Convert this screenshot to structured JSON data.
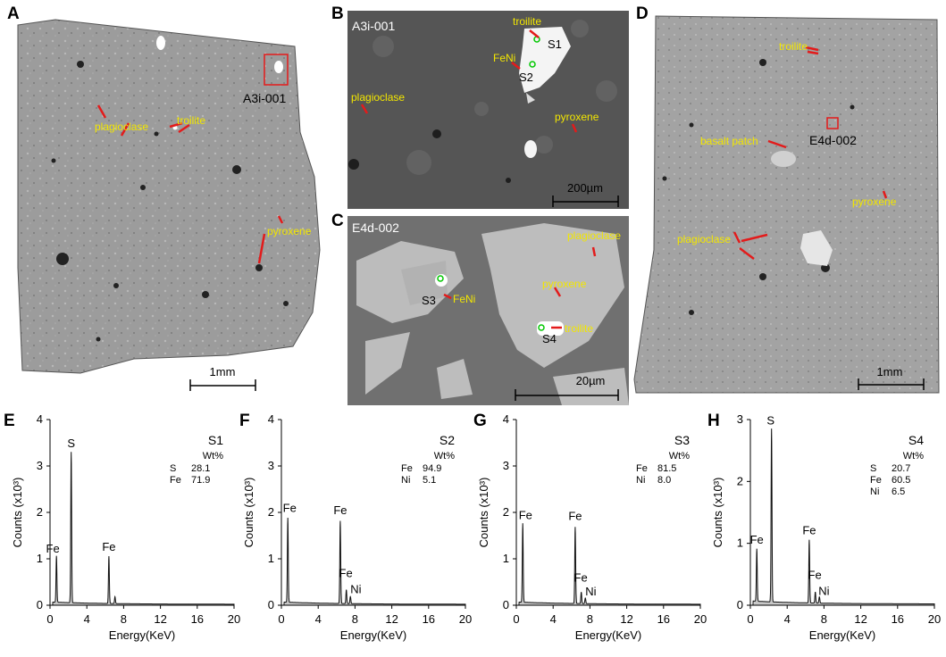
{
  "panels": {
    "A": {
      "letter": "A",
      "site": "A3i-001",
      "scale": "1mm",
      "minerals": [
        "plagioclase",
        "troilite",
        "pyroxene"
      ]
    },
    "B": {
      "letter": "B",
      "title": "A3i-001",
      "scale": "200µm",
      "minerals": [
        "troilite",
        "FeNi",
        "plagioclase",
        "pyroxene"
      ],
      "spots": [
        "S1",
        "S2"
      ]
    },
    "C": {
      "letter": "C",
      "title": "E4d-002",
      "scale": "20µm",
      "minerals": [
        "plagioclase",
        "pyroxene",
        "FeNi",
        "troilite"
      ],
      "spots": [
        "S3",
        "S4"
      ]
    },
    "D": {
      "letter": "D",
      "site": "E4d-002",
      "scale": "1mm",
      "minerals": [
        "troilite",
        "basalt patch",
        "pyroxene",
        "plagioclase"
      ]
    }
  },
  "spectra_common": {
    "xlabel": "Energy(KeV)",
    "ylabel": "Counts (x10³)",
    "wt_header": "Wt%"
  },
  "chart_data": [
    {
      "type": "line",
      "letter": "E",
      "spot": "S1",
      "xlim": [
        0,
        20
      ],
      "ylim": [
        0,
        4
      ],
      "xticks": [
        "0",
        "4",
        "8",
        "12",
        "16",
        "20"
      ],
      "yticks": [
        "0",
        "1",
        "2",
        "3",
        "4"
      ],
      "peaks": [
        {
          "x": 0.7,
          "y": 1.0
        },
        {
          "x": 2.3,
          "y": 3.25
        },
        {
          "x": 6.4,
          "y": 1.02
        },
        {
          "x": 7.06,
          "y": 0.15
        }
      ],
      "peak_labels": [
        {
          "text": "Fe",
          "x": 0.3,
          "y": 1.08
        },
        {
          "text": "S",
          "x": 2.3,
          "y": 3.35
        },
        {
          "text": "Fe",
          "x": 6.4,
          "y": 1.12
        }
      ],
      "composition": [
        {
          "el": "S",
          "wt": "28.1"
        },
        {
          "el": "Fe",
          "wt": "71.9"
        }
      ]
    },
    {
      "type": "line",
      "letter": "F",
      "spot": "S2",
      "xlim": [
        0,
        20
      ],
      "ylim": [
        0,
        4
      ],
      "xticks": [
        "0",
        "4",
        "8",
        "12",
        "16",
        "20"
      ],
      "yticks": [
        "0",
        "1",
        "2",
        "3",
        "4"
      ],
      "peaks": [
        {
          "x": 0.7,
          "y": 1.82
        },
        {
          "x": 6.4,
          "y": 1.78
        },
        {
          "x": 7.06,
          "y": 0.3
        },
        {
          "x": 7.5,
          "y": 0.15
        }
      ],
      "peak_labels": [
        {
          "text": "Fe",
          "x": 0.9,
          "y": 1.95
        },
        {
          "text": "Fe",
          "x": 6.4,
          "y": 1.9
        },
        {
          "text": "Fe",
          "x": 7.0,
          "y": 0.55
        },
        {
          "text": "Ni",
          "x": 8.1,
          "y": 0.2
        }
      ],
      "composition": [
        {
          "el": "Fe",
          "wt": "94.9"
        },
        {
          "el": "Ni",
          "wt": "5.1"
        }
      ]
    },
    {
      "type": "line",
      "letter": "G",
      "spot": "S3",
      "xlim": [
        0,
        20
      ],
      "ylim": [
        0,
        4
      ],
      "xticks": [
        "0",
        "4",
        "8",
        "12",
        "16",
        "20"
      ],
      "yticks": [
        "0",
        "1",
        "2",
        "3",
        "4"
      ],
      "peaks": [
        {
          "x": 0.7,
          "y": 1.7
        },
        {
          "x": 6.4,
          "y": 1.65
        },
        {
          "x": 7.06,
          "y": 0.25
        },
        {
          "x": 7.5,
          "y": 0.12
        }
      ],
      "peak_labels": [
        {
          "text": "Fe",
          "x": 1.0,
          "y": 1.8
        },
        {
          "text": "Fe",
          "x": 6.4,
          "y": 1.78
        },
        {
          "text": "Fe",
          "x": 7.0,
          "y": 0.45
        },
        {
          "text": "Ni",
          "x": 8.1,
          "y": 0.15
        }
      ],
      "composition": [
        {
          "el": "Fe",
          "wt": "81.5"
        },
        {
          "el": "Ni",
          "wt": "8.0"
        }
      ]
    },
    {
      "type": "line",
      "letter": "H",
      "spot": "S4",
      "xlim": [
        0,
        20
      ],
      "ylim": [
        0,
        3
      ],
      "xticks": [
        "0",
        "4",
        "8",
        "12",
        "16",
        "20"
      ],
      "yticks": [
        "0",
        "1",
        "2",
        "3"
      ],
      "peaks": [
        {
          "x": 0.7,
          "y": 0.85
        },
        {
          "x": 2.3,
          "y": 2.8
        },
        {
          "x": 6.4,
          "y": 1.02
        },
        {
          "x": 7.06,
          "y": 0.18
        },
        {
          "x": 7.5,
          "y": 0.1
        }
      ],
      "peak_labels": [
        {
          "text": "Fe",
          "x": 0.7,
          "y": 0.95
        },
        {
          "text": "S",
          "x": 2.2,
          "y": 2.88
        },
        {
          "text": "Fe",
          "x": 6.4,
          "y": 1.1
        },
        {
          "text": "Fe",
          "x": 7.0,
          "y": 0.38
        },
        {
          "text": "Ni",
          "x": 8.0,
          "y": 0.12
        }
      ],
      "composition": [
        {
          "el": "S",
          "wt": "20.7"
        },
        {
          "el": "Fe",
          "wt": "60.5"
        },
        {
          "el": "Ni",
          "wt": "6.5"
        }
      ]
    }
  ]
}
